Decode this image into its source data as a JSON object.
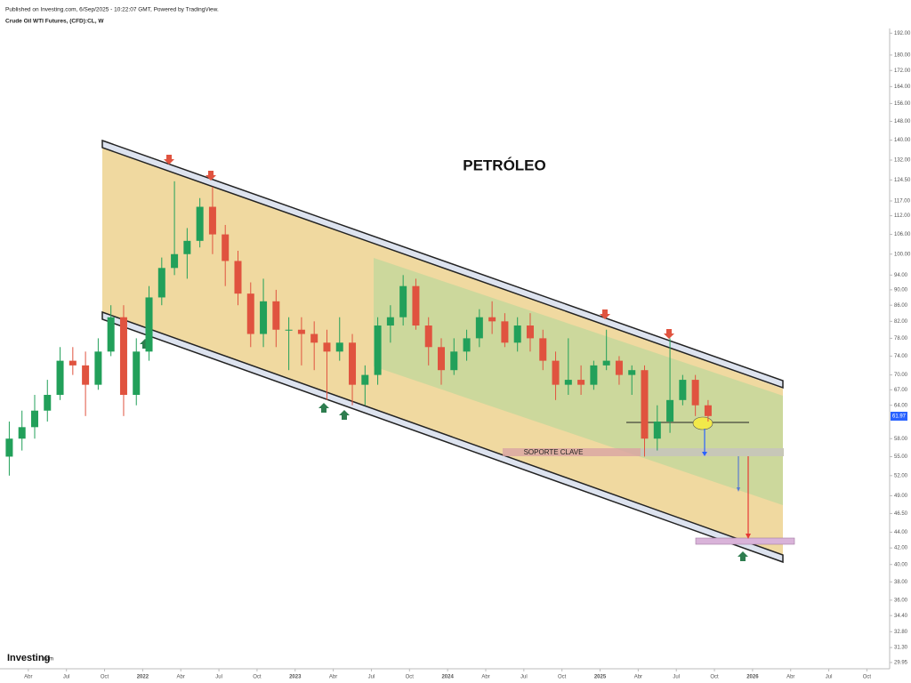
{
  "header": {
    "published": "Published on Investing.com, 6/Sep/2025 - 10:22:07 GMT, Powered by TradingView.",
    "instrument": "Crude Oil WTI Futures, (CFD):CL, W",
    "logo": "Investing",
    "logo_suffix": ".com"
  },
  "chart_data": {
    "type": "candlestick",
    "title": "PETRÓLEO",
    "annotations": [
      "SOPORTE CLAVE"
    ],
    "log_scale": true,
    "up_color": "#22a05a",
    "down_color": "#e0533f",
    "last_value": 61.97,
    "last_color": "#2962ff",
    "x": [
      "2021-02",
      "2021-03",
      "2021-04",
      "2021-05",
      "2021-06",
      "2021-07",
      "2021-08",
      "2021-09",
      "2021-10",
      "2021-11",
      "2021-12",
      "2022-01",
      "2022-02",
      "2022-03",
      "2022-04",
      "2022-05",
      "2022-06",
      "2022-07",
      "2022-08",
      "2022-09",
      "2022-10",
      "2022-11",
      "2022-12",
      "2023-01",
      "2023-02",
      "2023-03",
      "2023-04",
      "2023-05",
      "2023-06",
      "2023-07",
      "2023-08",
      "2023-09",
      "2023-10",
      "2023-11",
      "2023-12",
      "2024-01",
      "2024-02",
      "2024-03",
      "2024-04",
      "2024-05",
      "2024-06",
      "2024-07",
      "2024-08",
      "2024-09",
      "2024-10",
      "2024-11",
      "2024-12",
      "2025-01",
      "2025-02",
      "2025-03",
      "2025-04",
      "2025-05",
      "2025-06",
      "2025-07",
      "2025-08",
      "2025-09"
    ],
    "open": [
      55,
      58,
      60,
      63,
      66,
      73,
      72,
      68,
      75,
      83,
      66,
      75,
      88,
      96,
      100,
      104,
      115,
      106,
      98,
      89,
      79,
      87,
      80,
      80,
      79,
      77,
      75,
      77,
      68,
      70,
      81,
      83,
      91,
      81,
      76,
      71,
      75,
      78,
      83,
      82,
      77,
      81,
      78,
      73,
      68,
      69,
      68,
      72,
      73,
      70,
      71,
      58,
      61,
      65,
      69,
      64
    ],
    "high": [
      61,
      63,
      66,
      69,
      76,
      76,
      75,
      78,
      86,
      86,
      78,
      91,
      99,
      124,
      108,
      118,
      122,
      109,
      101,
      92,
      93,
      90,
      83,
      83,
      82,
      80,
      83,
      79,
      72,
      83,
      86,
      94,
      93,
      83,
      78,
      78,
      80,
      85,
      87,
      84,
      83,
      84,
      80,
      75,
      78,
      72,
      73,
      80,
      74,
      72,
      72,
      64,
      78,
      70,
      70,
      65
    ],
    "low": [
      52,
      56,
      58,
      61,
      65,
      70,
      62,
      67,
      74,
      62,
      64,
      73,
      86,
      94,
      93,
      102,
      100,
      91,
      86,
      76,
      76,
      76,
      71,
      72,
      71,
      65,
      73,
      64,
      64,
      68,
      77,
      81,
      80,
      72,
      68,
      70,
      73,
      76,
      79,
      76,
      75,
      75,
      71,
      65,
      66,
      66,
      67,
      71,
      68,
      66,
      55,
      56,
      59,
      64,
      62,
      61
    ],
    "close": [
      58,
      60,
      63,
      66,
      73,
      72,
      68,
      75,
      83,
      66,
      75,
      88,
      96,
      100,
      104,
      115,
      106,
      98,
      89,
      79,
      87,
      80,
      80,
      79,
      77,
      75,
      77,
      68,
      70,
      81,
      83,
      91,
      81,
      76,
      71,
      75,
      78,
      83,
      82,
      77,
      81,
      78,
      73,
      68,
      69,
      68,
      72,
      73,
      70,
      71,
      58,
      61,
      65,
      69,
      64,
      62
    ],
    "xlim": [
      "2021-01",
      "2026-12"
    ],
    "xticks": [
      {
        "value": "2021-04",
        "label": "Abr"
      },
      {
        "value": "2021-07",
        "label": "Jul"
      },
      {
        "value": "2021-10",
        "label": "Oct"
      },
      {
        "value": "2022-01",
        "label": "2022"
      },
      {
        "value": "2022-04",
        "label": "Abr"
      },
      {
        "value": "2022-07",
        "label": "Jul"
      },
      {
        "value": "2022-10",
        "label": "Oct"
      },
      {
        "value": "2023-01",
        "label": "2023"
      },
      {
        "value": "2023-04",
        "label": "Abr"
      },
      {
        "value": "2023-07",
        "label": "Jul"
      },
      {
        "value": "2023-10",
        "label": "Oct"
      },
      {
        "value": "2024-01",
        "label": "2024"
      },
      {
        "value": "2024-04",
        "label": "Abr"
      },
      {
        "value": "2024-07",
        "label": "Jul"
      },
      {
        "value": "2024-10",
        "label": "Oct"
      },
      {
        "value": "2025-01",
        "label": "2025"
      },
      {
        "value": "2025-04",
        "label": "Abr"
      },
      {
        "value": "2025-07",
        "label": "Jul"
      },
      {
        "value": "2025-10",
        "label": "Oct"
      },
      {
        "value": "2026-01",
        "label": "2026"
      },
      {
        "value": "2026-04",
        "label": "Abr"
      },
      {
        "value": "2026-07",
        "label": "Jul"
      },
      {
        "value": "2026-10",
        "label": "Oct"
      }
    ],
    "ylim": [
      29.4,
      194.7
    ],
    "yticks": [
      {
        "value": 192,
        "label": "192.00"
      },
      {
        "value": 180,
        "label": "180.00"
      },
      {
        "value": 172,
        "label": "172.00"
      },
      {
        "value": 164,
        "label": "164.00"
      },
      {
        "value": 156,
        "label": "156.00"
      },
      {
        "value": 148,
        "label": "148.00"
      },
      {
        "value": 140,
        "label": "140.00"
      },
      {
        "value": 132,
        "label": "132.00"
      },
      {
        "value": 124.5,
        "label": "124.50"
      },
      {
        "value": 117,
        "label": "117.00"
      },
      {
        "value": 112,
        "label": "112.00"
      },
      {
        "value": 106,
        "label": "106.00"
      },
      {
        "value": 100,
        "label": "100.00"
      },
      {
        "value": 94,
        "label": "94.00"
      },
      {
        "value": 90,
        "label": "90.00"
      },
      {
        "value": 86,
        "label": "86.00"
      },
      {
        "value": 82,
        "label": "82.00"
      },
      {
        "value": 78,
        "label": "78.00"
      },
      {
        "value": 74,
        "label": "74.00"
      },
      {
        "value": 70,
        "label": "70.00"
      },
      {
        "value": 67,
        "label": "67.00"
      },
      {
        "value": 64,
        "label": "64.00"
      },
      {
        "value": 58,
        "label": "58.00"
      },
      {
        "value": 55,
        "label": "55.00"
      },
      {
        "value": 52,
        "label": "52.00"
      },
      {
        "value": 49,
        "label": "49.00"
      },
      {
        "value": 46.5,
        "label": "46.50"
      },
      {
        "value": 44,
        "label": "44.00"
      },
      {
        "value": 42,
        "label": "42.00"
      },
      {
        "value": 40,
        "label": "40.00"
      },
      {
        "value": 38,
        "label": "38.00"
      },
      {
        "value": 36,
        "label": "36.00"
      },
      {
        "value": 34.4,
        "label": "34.40"
      },
      {
        "value": 32.8,
        "label": "32.80"
      },
      {
        "value": 31.3,
        "label": "31.30"
      },
      {
        "value": 29.95,
        "label": "29.95"
      }
    ]
  }
}
